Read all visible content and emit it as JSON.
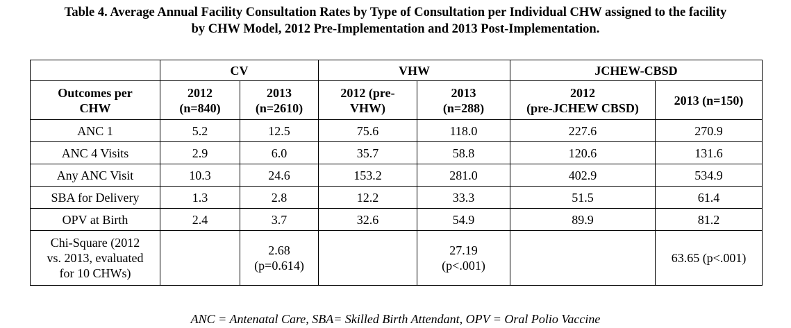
{
  "caption": {
    "line1": "Table 4. Average Annual Facility Consultation Rates by Type of Consultation per Individual CHW assigned to the facility",
    "line2": "by CHW Model, 2012 Pre-Implementation and 2013 Post-Implementation."
  },
  "table": {
    "groups": {
      "cv": "CV",
      "vhw": "VHW",
      "jchew": "JCHEW-CBSD"
    },
    "subheaders": {
      "outcomes_l1": "Outcomes per",
      "outcomes_l2": "CHW",
      "cv2012_l1": "2012",
      "cv2012_l2": "(n=840)",
      "cv2013_l1": "2013",
      "cv2013_l2": "(n=2610)",
      "vhw2012_l1": "2012 (pre-",
      "vhw2012_l2": "VHW)",
      "vhw2013_l1": "2013",
      "vhw2013_l2": "(n=288)",
      "j2012_l1": "2012",
      "j2012_l2": "(pre-JCHEW CBSD)",
      "j2013": "2013 (n=150)"
    },
    "rows": [
      {
        "label": "ANC 1",
        "values": [
          "5.2",
          "12.5",
          "75.6",
          "118.0",
          "227.6",
          "270.9"
        ]
      },
      {
        "label": "ANC 4 Visits",
        "values": [
          "2.9",
          "6.0",
          "35.7",
          "58.8",
          "120.6",
          "131.6"
        ]
      },
      {
        "label": "Any ANC Visit",
        "values": [
          "10.3",
          "24.6",
          "153.2",
          "281.0",
          "402.9",
          "534.9"
        ]
      },
      {
        "label": "SBA for Delivery",
        "values": [
          "1.3",
          "2.8",
          "12.2",
          "33.3",
          "51.5",
          "61.4"
        ]
      },
      {
        "label": "OPV at Birth",
        "values": [
          "2.4",
          "3.7",
          "32.6",
          "54.9",
          "89.9",
          "81.2"
        ]
      }
    ],
    "chi_square": {
      "label_l1": "Chi-Square (2012",
      "label_l2": "vs. 2013, evaluated",
      "label_l3": "for 10 CHWs)",
      "cv_l1": "2.68",
      "cv_l2": "(p=0.614)",
      "vhw_l1": "27.19",
      "vhw_l2": "(p<.001)",
      "jchew": "63.65 (p<.001)"
    }
  },
  "footnote": "ANC = Antenatal Care, SBA= Skilled Birth Attendant, OPV = Oral Polio Vaccine"
}
